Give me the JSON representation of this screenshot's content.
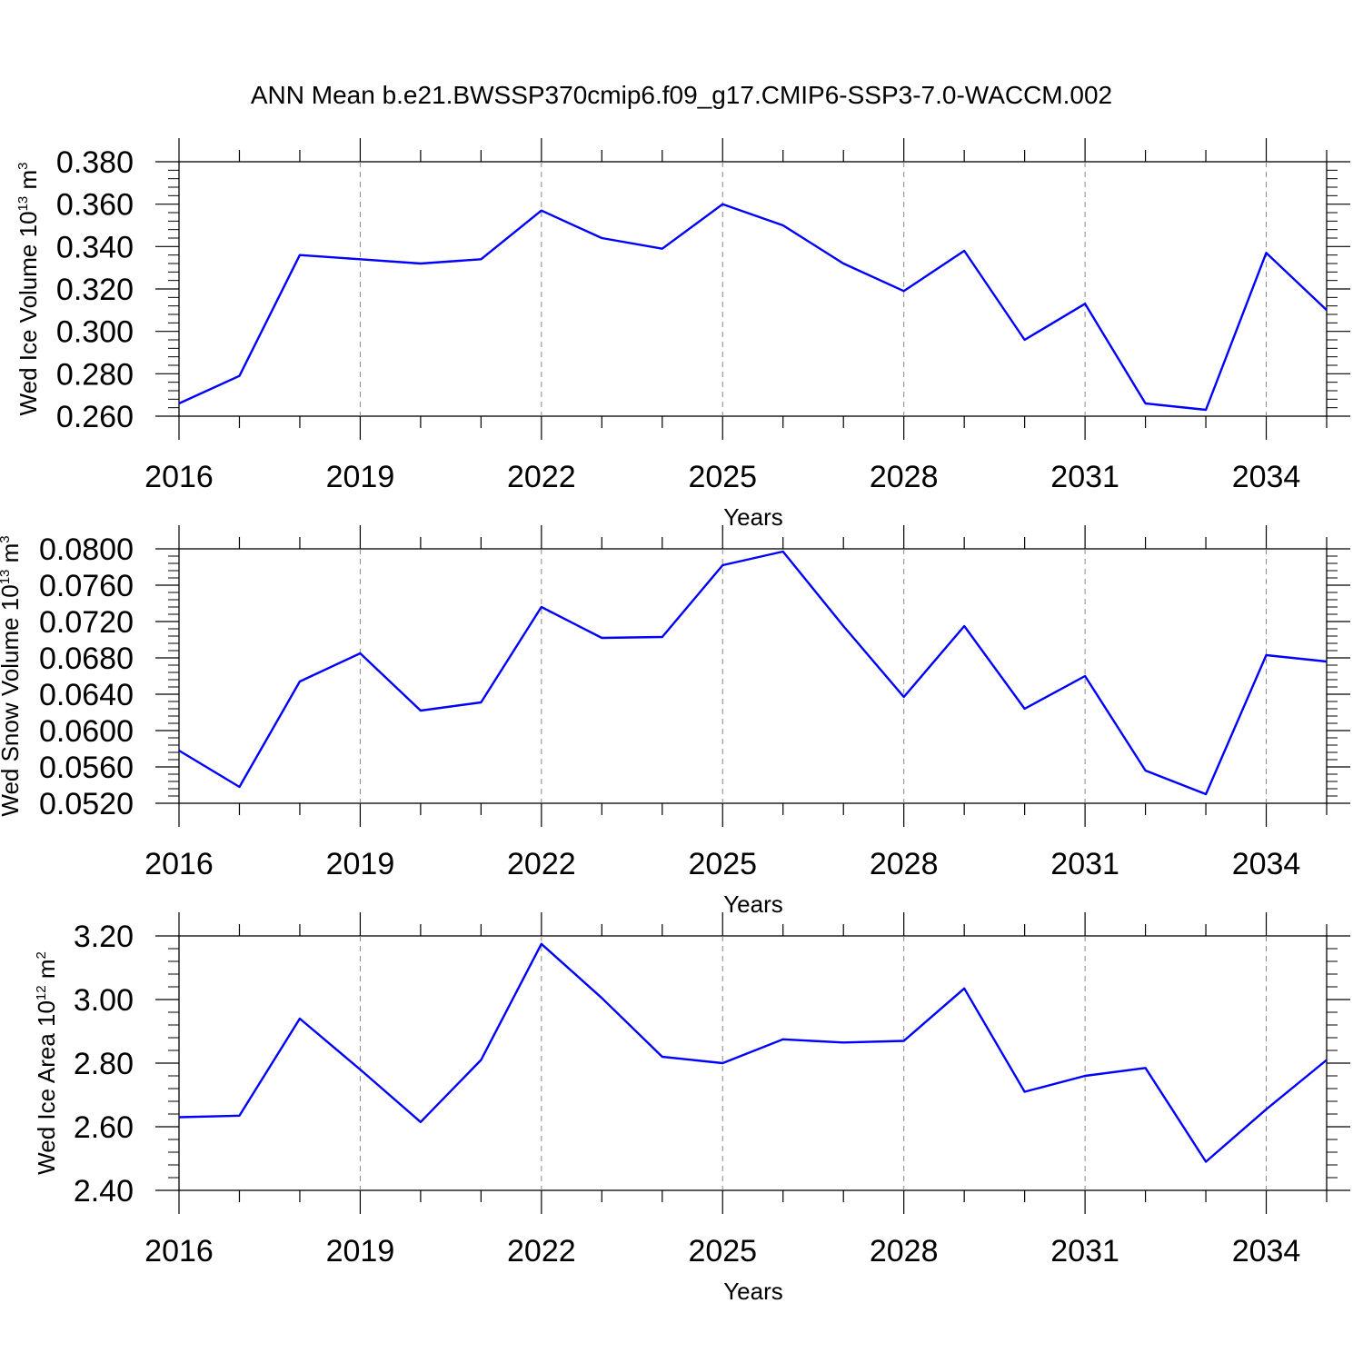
{
  "title": "ANN Mean b.e21.BWSSP370cmip6.f09_g17.CMIP6-SSP3-7.0-WACCM.002",
  "colors": {
    "line": "#0000ff",
    "axis": "#000000",
    "grid": "#888888"
  },
  "chart_data": [
    {
      "type": "line",
      "title": "ANN Mean b.e21.BWSSP370cmip6.f09_g17.CMIP6-SSP3-7.0-WACCM.002",
      "ylabel": {
        "main": "Wed Ice Volume 10",
        "exp": "13",
        "unit": " m",
        "unit_exp": "3"
      },
      "xlabel": "Years",
      "xlim": [
        2016,
        2035
      ],
      "xticks": [
        "2016",
        "2019",
        "2022",
        "2025",
        "2028",
        "2031",
        "2034"
      ],
      "ylim": [
        0.26,
        0.38
      ],
      "yticks": [
        "0.260",
        "0.280",
        "0.300",
        "0.320",
        "0.340",
        "0.360",
        "0.380"
      ],
      "grid": "vertical dashed at major x ticks",
      "series": [
        {
          "x": [
            2016,
            2017,
            2018,
            2019,
            2020,
            2021,
            2022,
            2023,
            2024,
            2025,
            2026,
            2027,
            2028,
            2029,
            2030,
            2031,
            2032,
            2033,
            2034,
            2035
          ],
          "values": [
            0.266,
            0.279,
            0.336,
            0.334,
            0.332,
            0.334,
            0.357,
            0.344,
            0.339,
            0.36,
            0.35,
            0.332,
            0.319,
            0.338,
            0.296,
            0.313,
            0.266,
            0.263,
            0.337,
            0.31
          ]
        }
      ]
    },
    {
      "type": "line",
      "ylabel": {
        "main": "Wed Snow Volume 10",
        "exp": "13",
        "unit": " m",
        "unit_exp": "3"
      },
      "xlabel": "Years",
      "xlim": [
        2016,
        2035
      ],
      "xticks": [
        "2016",
        "2019",
        "2022",
        "2025",
        "2028",
        "2031",
        "2034"
      ],
      "ylim": [
        0.052,
        0.08
      ],
      "yticks": [
        "0.0520",
        "0.0560",
        "0.0600",
        "0.0640",
        "0.0680",
        "0.0720",
        "0.0760",
        "0.0800"
      ],
      "grid": "vertical dashed at major x ticks",
      "series": [
        {
          "x": [
            2016,
            2017,
            2018,
            2019,
            2020,
            2021,
            2022,
            2023,
            2024,
            2025,
            2026,
            2027,
            2028,
            2029,
            2030,
            2031,
            2032,
            2033,
            2034,
            2035
          ],
          "values": [
            0.0578,
            0.0538,
            0.0654,
            0.0685,
            0.0622,
            0.0631,
            0.0736,
            0.0702,
            0.0703,
            0.0782,
            0.0797,
            0.0715,
            0.0637,
            0.0715,
            0.0624,
            0.066,
            0.0556,
            0.053,
            0.0683,
            0.0676
          ]
        }
      ]
    },
    {
      "type": "line",
      "ylabel": {
        "main": "Wed Ice Area 10",
        "exp": "12",
        "unit": " m",
        "unit_exp": "2"
      },
      "xlabel": "Years",
      "xlim": [
        2016,
        2035
      ],
      "xticks": [
        "2016",
        "2019",
        "2022",
        "2025",
        "2028",
        "2031",
        "2034"
      ],
      "ylim": [
        2.4,
        3.2
      ],
      "yticks": [
        "2.40",
        "2.60",
        "2.80",
        "3.00",
        "3.20"
      ],
      "grid": "vertical dashed at major x ticks",
      "series": [
        {
          "x": [
            2016,
            2017,
            2018,
            2019,
            2020,
            2021,
            2022,
            2023,
            2024,
            2025,
            2026,
            2027,
            2028,
            2029,
            2030,
            2031,
            2032,
            2033,
            2034,
            2035
          ],
          "values": [
            2.63,
            2.635,
            2.94,
            2.78,
            2.615,
            2.81,
            3.175,
            3.005,
            2.82,
            2.8,
            2.875,
            2.865,
            2.87,
            3.035,
            2.71,
            2.76,
            2.785,
            2.49,
            2.655,
            2.81
          ]
        }
      ]
    }
  ]
}
